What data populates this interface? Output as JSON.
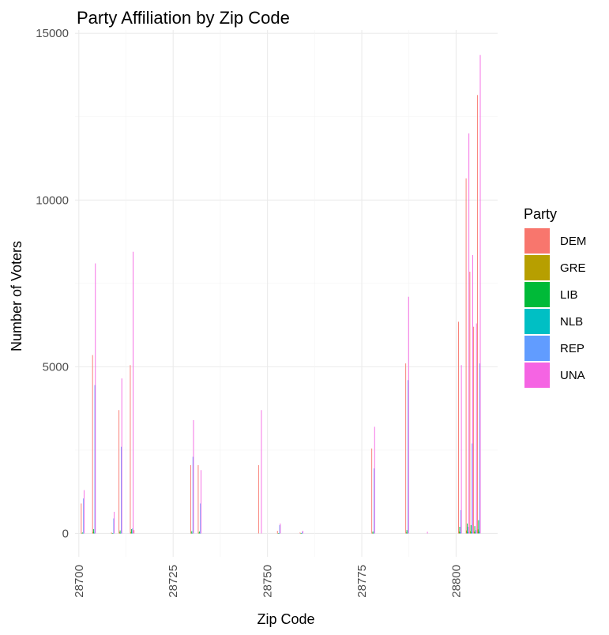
{
  "chart_data": {
    "type": "bar",
    "title": "Party Affiliation by Zip Code",
    "xlabel": "Zip Code",
    "ylabel": "Number of Voters",
    "xlim": [
      28699,
      28811
    ],
    "ylim": [
      -700,
      15100
    ],
    "xticks": [
      28700,
      28725,
      28750,
      28775,
      28800
    ],
    "yticks": [
      0,
      5000,
      10000,
      15000
    ],
    "grid": true,
    "legend_title": "Party",
    "legend_position": "right",
    "colors": {
      "DEM": "#F8766D",
      "GRE": "#B79F00",
      "LIB": "#00BA38",
      "NLB": "#00BFC4",
      "REP": "#619CFF",
      "UNA": "#F564E3"
    },
    "series": [
      {
        "name": "DEM",
        "values": [
          900,
          5350,
          30,
          3700,
          5050,
          2050,
          2050,
          80,
          30,
          2550,
          5100,
          6350,
          10650,
          7850,
          6200,
          13150
        ]
      },
      {
        "name": "GRE",
        "values": [
          10,
          40,
          5,
          30,
          40,
          20,
          20,
          5,
          5,
          20,
          30,
          60,
          90,
          70,
          60,
          120
        ]
      },
      {
        "name": "LIB",
        "values": [
          30,
          130,
          10,
          90,
          130,
          70,
          60,
          10,
          10,
          60,
          100,
          200,
          300,
          250,
          220,
          400
        ]
      },
      {
        "name": "NLB",
        "values": [
          5,
          20,
          2,
          15,
          20,
          10,
          10,
          2,
          2,
          10,
          15,
          30,
          40,
          35,
          30,
          60
        ]
      },
      {
        "name": "REP",
        "values": [
          1050,
          4450,
          450,
          2600,
          150,
          2300,
          900,
          250,
          50,
          1950,
          4600,
          700,
          200,
          2700,
          100,
          5100
        ]
      },
      {
        "name": "UNA",
        "values": [
          1300,
          8100,
          650,
          4650,
          8450,
          3400,
          1900,
          300,
          80,
          3200,
          7100,
          5050,
          12000,
          8350,
          6300,
          14350
        ]
      }
    ],
    "zip_codes": [
      28701,
      28704,
      28709,
      28711,
      28714,
      28730,
      28732,
      28753,
      28759,
      28778,
      28787,
      28801,
      28803,
      28804,
      28805,
      28806
    ],
    "extra_bars": [
      {
        "zip": 28748,
        "DEM": 2050,
        "UNA": 3700
      },
      {
        "zip": 28792,
        "UNA": 50
      },
      {
        "zip": 28715,
        "DEM": 100
      }
    ]
  }
}
